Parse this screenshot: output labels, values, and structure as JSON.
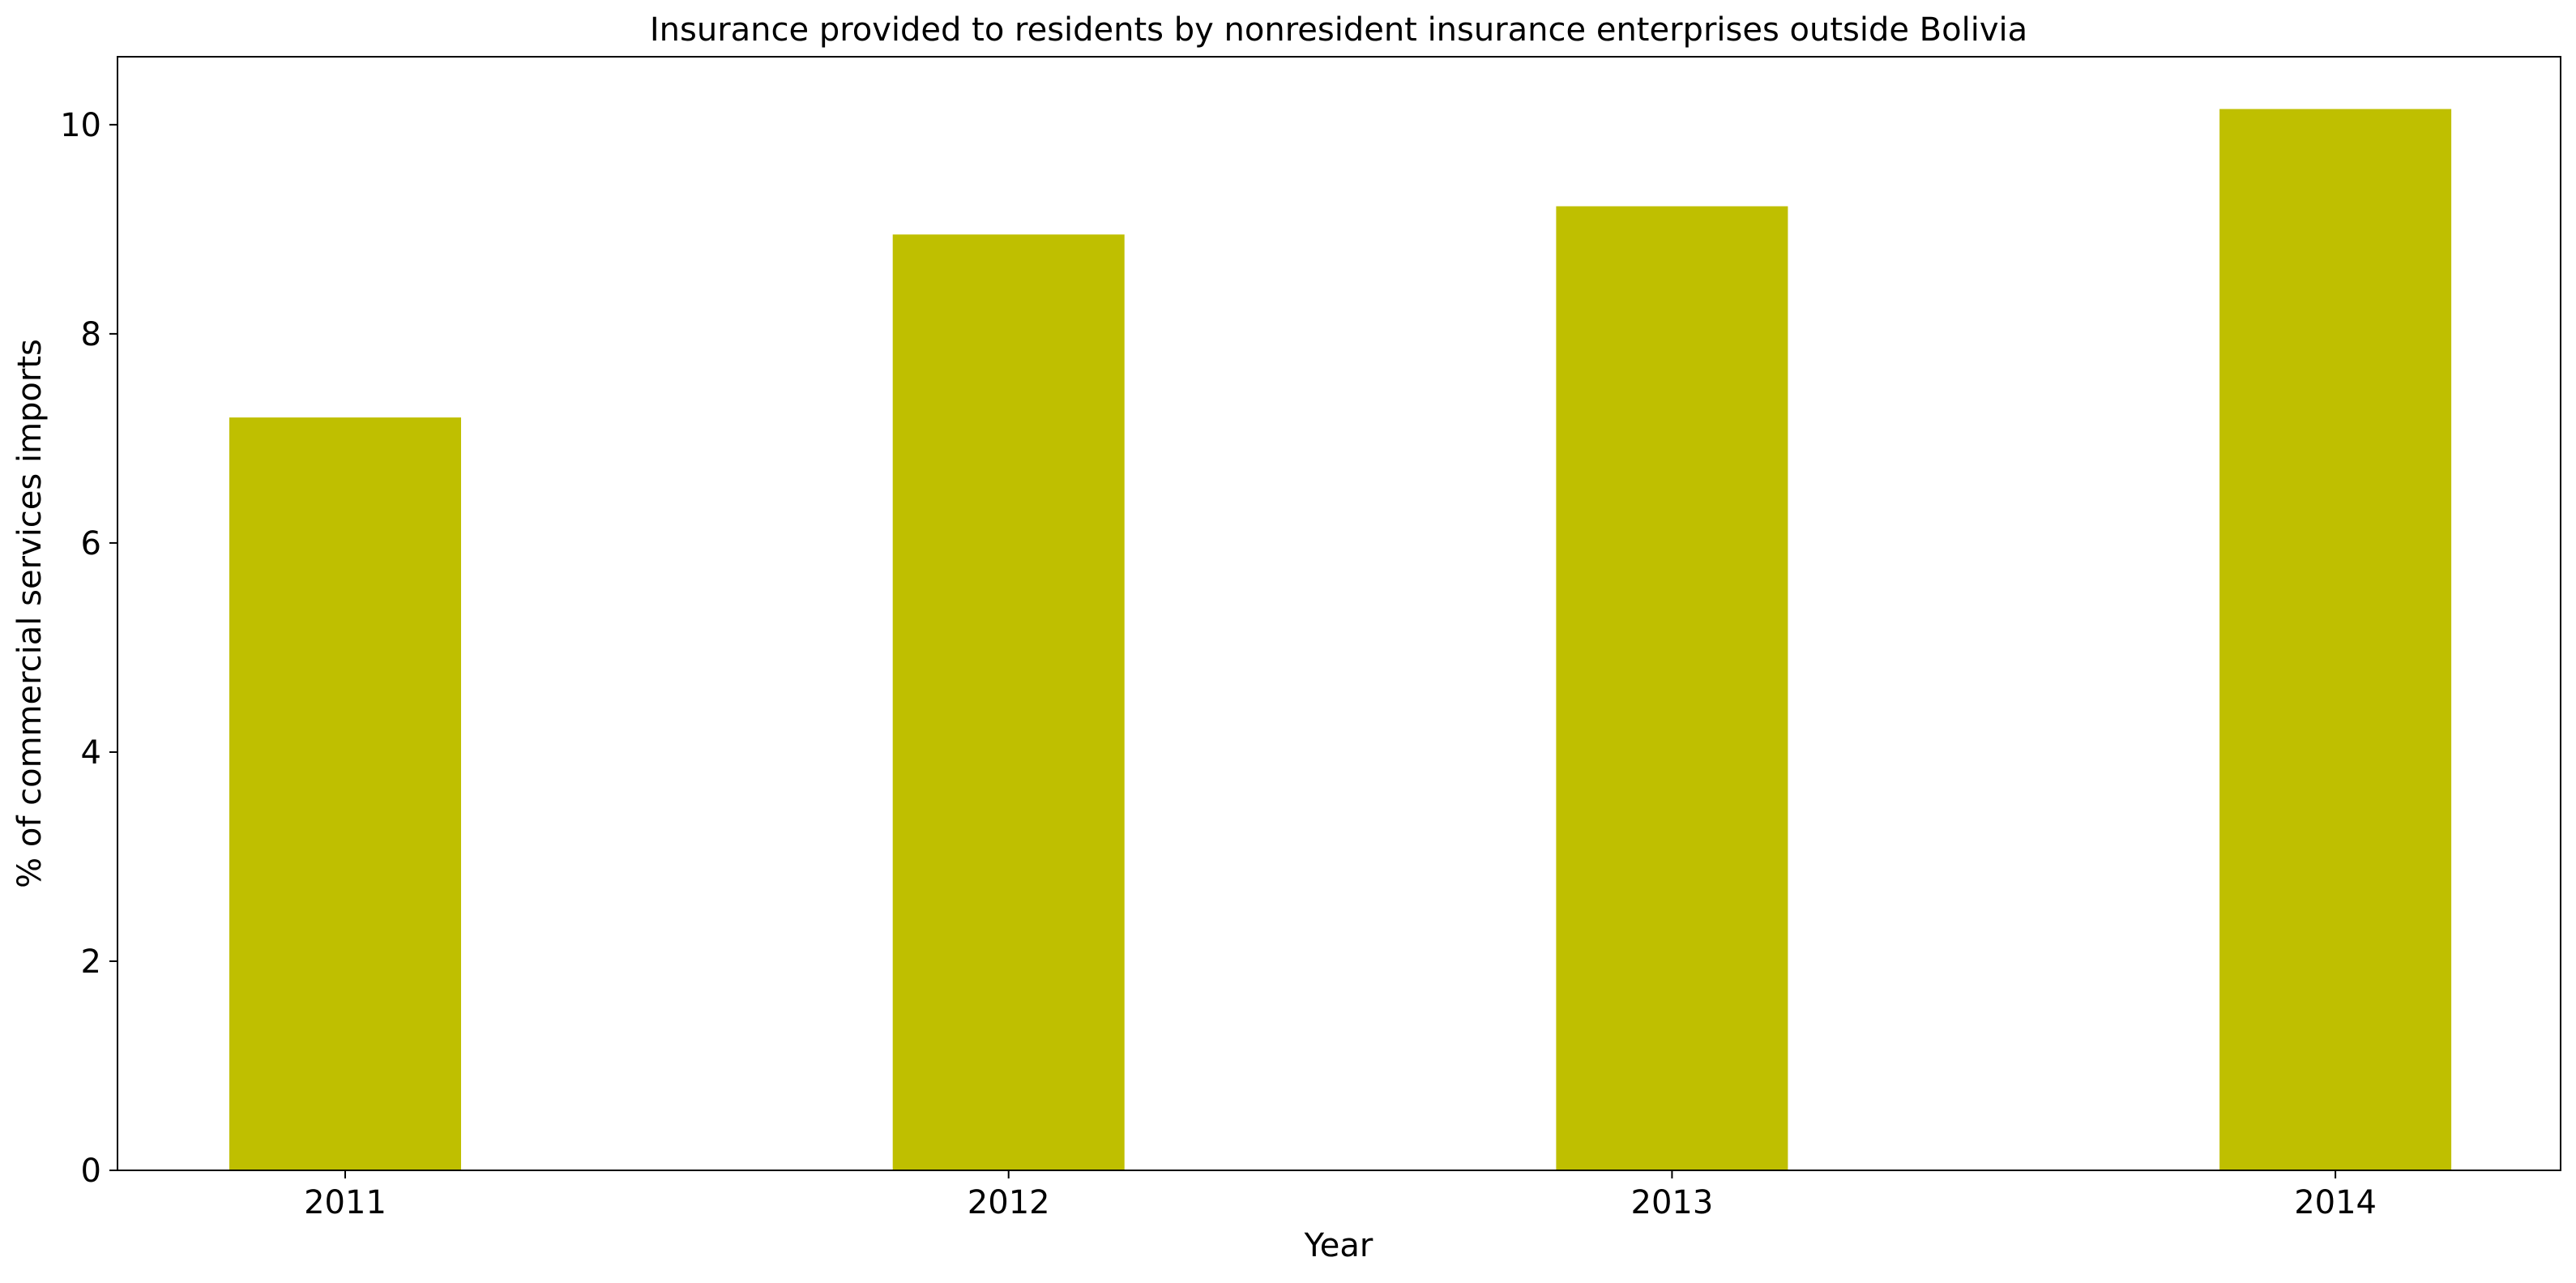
{
  "chart_data": {
    "type": "bar",
    "title": "Insurance provided to residents by nonresident insurance enterprises outside Bolivia",
    "xlabel": "Year",
    "ylabel": "% of commercial services imports",
    "categories": [
      "2011",
      "2012",
      "2013",
      "2014"
    ],
    "values": [
      7.2,
      8.95,
      9.22,
      10.15
    ],
    "ylim": [
      0,
      10.65
    ],
    "yticks": [
      0,
      2,
      4,
      6,
      8,
      10
    ],
    "bar_color": "#bfbf00",
    "grid": false,
    "legend": "none"
  }
}
